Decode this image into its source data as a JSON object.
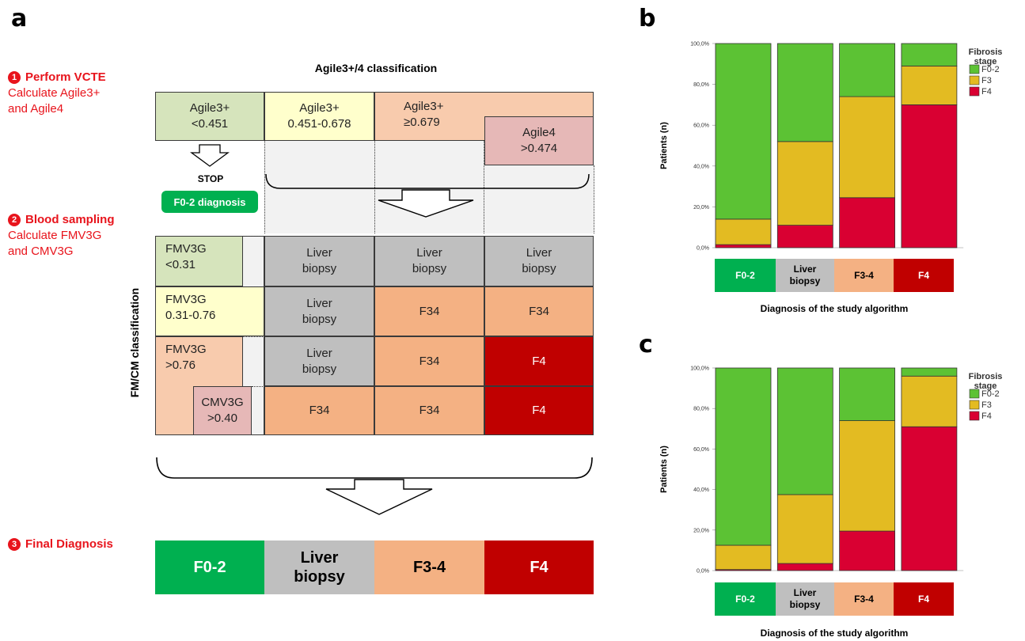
{
  "panels": {
    "a": "a",
    "b": "b",
    "c": "c"
  },
  "steps": [
    {
      "number": "1",
      "title": "Perform VCTE",
      "lines": [
        "Calculate Agile3+",
        "and Agile4"
      ]
    },
    {
      "number": "2",
      "title": "Blood sampling",
      "lines": [
        "Calculate FMV3G",
        "and CMV3G"
      ]
    },
    {
      "number": "3",
      "title": "Final Diagnosis",
      "lines": []
    }
  ],
  "agile_title": "Agile3+/4 classification",
  "fmcm_title": "FM/CM classification",
  "agile_cells": {
    "low": [
      "Agile3+",
      "<0.451"
    ],
    "mid": [
      "Agile3+",
      "0.451-0.678"
    ],
    "high": [
      "Agile3+",
      "≥0.679"
    ],
    "agile4": [
      "Agile4",
      ">0.474"
    ]
  },
  "stop_label": "STOP",
  "f02_badge": "F0-2 diagnosis",
  "fm_cells": {
    "fm_low": [
      "FMV3G",
      "<0.31"
    ],
    "fm_mid": [
      "FMV3G",
      "0.31-0.76"
    ],
    "fm_high": [
      "FMV3G",
      ">0.76"
    ],
    "cm": [
      "CMV3G",
      ">0.40"
    ]
  },
  "grid": [
    [
      [
        "Liver",
        "biopsy"
      ],
      [
        "Liver",
        "biopsy"
      ],
      [
        "Liver",
        "biopsy"
      ]
    ],
    [
      [
        "Liver",
        "biopsy"
      ],
      [
        "F34"
      ],
      [
        "F34"
      ]
    ],
    [
      [
        "Liver",
        "biopsy"
      ],
      [
        "F34"
      ],
      [
        "F4"
      ]
    ],
    [
      [
        "F34"
      ],
      [
        "F34"
      ],
      [
        "F4"
      ]
    ]
  ],
  "final_diagnosis": [
    {
      "label": [
        "F0-2"
      ],
      "color": "#00b050",
      "text_color": "#ffffff"
    },
    {
      "label": [
        "Liver",
        "biopsy"
      ],
      "color": "#bfbfbf",
      "text_color": "#000000"
    },
    {
      "label": [
        "F3-4"
      ],
      "color": "#f4b183",
      "text_color": "#000000"
    },
    {
      "label": [
        "F4"
      ],
      "color": "#c00000",
      "text_color": "#ffffff"
    }
  ],
  "colors": {
    "f02": "#5cc234",
    "f3": "#e3bb22",
    "f4": "#d90032"
  },
  "chart_data": [
    {
      "type": "bar",
      "stacked": true,
      "ylabel": "Patients (n)",
      "xlabel": "Diagnosis of the study algorithm",
      "yticks": [
        "0,0%",
        "20,0%",
        "40,0%",
        "60,0%",
        "80,0%",
        "100,0%"
      ],
      "ylim": [
        0,
        100
      ],
      "legend_title": "Fibrosis stage",
      "legend_position": "top-right",
      "categories": [
        [
          "F0-2"
        ],
        [
          "Liver",
          "biopsy"
        ],
        [
          "F3-4"
        ],
        [
          "F4"
        ]
      ],
      "series": [
        {
          "name": "F4",
          "values": [
            1.5,
            11,
            24.5,
            70
          ]
        },
        {
          "name": "F3",
          "values": [
            12.5,
            41,
            49.5,
            19
          ]
        },
        {
          "name": "F0-2",
          "values": [
            86,
            48,
            26,
            11
          ]
        }
      ]
    },
    {
      "type": "bar",
      "stacked": true,
      "ylabel": "Patients (n)",
      "xlabel": "Diagnosis of the study algorithm",
      "yticks": [
        "0,0%",
        "20,0%",
        "40,0%",
        "60,0%",
        "80,0%",
        "100,0%"
      ],
      "ylim": [
        0,
        100
      ],
      "legend_title": "Fibrosis stage",
      "legend_position": "top-right",
      "categories": [
        [
          "F0-2"
        ],
        [
          "Liver",
          "biopsy"
        ],
        [
          "F3-4"
        ],
        [
          "F4"
        ]
      ],
      "series": [
        {
          "name": "F4",
          "values": [
            0.5,
            3.5,
            19.5,
            71
          ]
        },
        {
          "name": "F3",
          "values": [
            12,
            34,
            54.5,
            25
          ]
        },
        {
          "name": "F0-2",
          "values": [
            87.5,
            62.5,
            26,
            4
          ]
        }
      ]
    }
  ]
}
